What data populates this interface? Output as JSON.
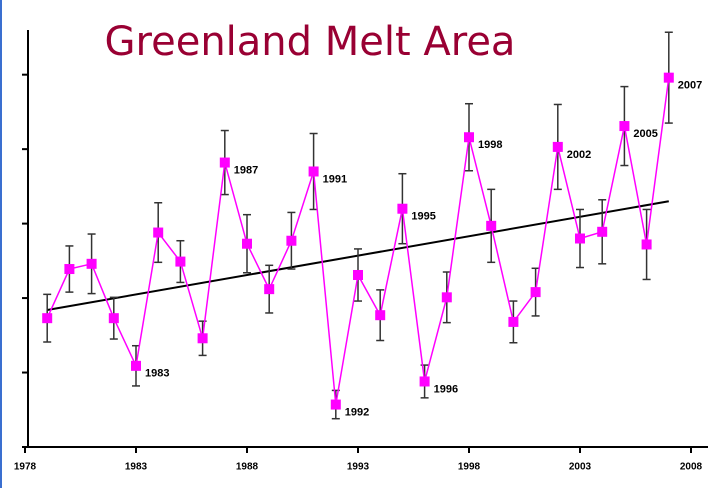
{
  "chart_data": {
    "type": "line",
    "title": "Greenland Melt Area",
    "x": [
      1979,
      1980,
      1981,
      1982,
      1983,
      1984,
      1985,
      1986,
      1987,
      1988,
      1989,
      1990,
      1991,
      1992,
      1993,
      1994,
      1995,
      1996,
      1997,
      1998,
      1999,
      2000,
      2001,
      2002,
      2003,
      2004,
      2005,
      2006,
      2007
    ],
    "series": [
      {
        "color": "#ff00ff",
        "values": [
          1.73,
          2.39,
          2.46,
          1.73,
          1.09,
          2.88,
          2.49,
          1.46,
          3.82,
          2.73,
          2.12,
          2.77,
          3.7,
          0.57,
          2.31,
          1.77,
          3.2,
          0.88,
          2.01,
          4.16,
          2.97,
          1.68,
          2.08,
          4.03,
          2.8,
          2.89,
          4.31,
          2.72,
          4.96
        ],
        "errors": [
          0.32,
          0.31,
          0.4,
          0.28,
          0.27,
          0.4,
          0.28,
          0.23,
          0.43,
          0.39,
          0.32,
          0.38,
          0.51,
          0.19,
          0.35,
          0.34,
          0.47,
          0.22,
          0.34,
          0.45,
          0.49,
          0.28,
          0.32,
          0.57,
          0.39,
          0.43,
          0.53,
          0.47,
          0.61
        ],
        "point_labels": [
          null,
          null,
          null,
          null,
          "1983",
          null,
          null,
          null,
          "1987",
          null,
          null,
          null,
          "1991",
          "1992",
          null,
          null,
          "1995",
          "1996",
          null,
          "1998",
          null,
          null,
          null,
          "2002",
          null,
          null,
          "2005",
          null,
          "2007"
        ]
      }
    ],
    "trend": {
      "color": "#000000",
      "x": [
        1979,
        2007
      ],
      "values": [
        1.84,
        3.3
      ]
    },
    "xlim": [
      1978,
      2008
    ],
    "xticks": [
      1978,
      1983,
      1988,
      1993,
      1998,
      2003,
      2008
    ],
    "ylim": [
      0,
      5.6
    ],
    "yticks": [
      0,
      1,
      2,
      3,
      4,
      5
    ]
  }
}
